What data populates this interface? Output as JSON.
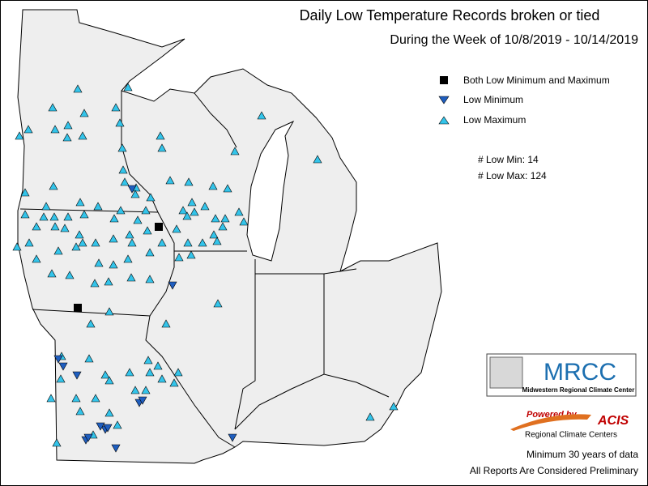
{
  "title": "Daily Low Temperature Records broken or tied",
  "subtitle": "During the Week of 10/8/2019 - 10/14/2019",
  "legend": [
    {
      "label": "Both Low Minimum and Maximum"
    },
    {
      "label": "Low Minimum"
    },
    {
      "label": "Low Maximum"
    }
  ],
  "counts": [
    "# Low Min: 14",
    "# Low Max: 124"
  ],
  "logo": {
    "title": "MRCC",
    "subtitle": "Midwestern Regional Climate Center"
  },
  "powered": {
    "label": "Powered by",
    "brand": "ACIS",
    "subtitle": "Regional Climate Centers"
  },
  "footer": [
    "Minimum 30 years of data",
    "All Reports Are Considered Preliminary"
  ]
}
